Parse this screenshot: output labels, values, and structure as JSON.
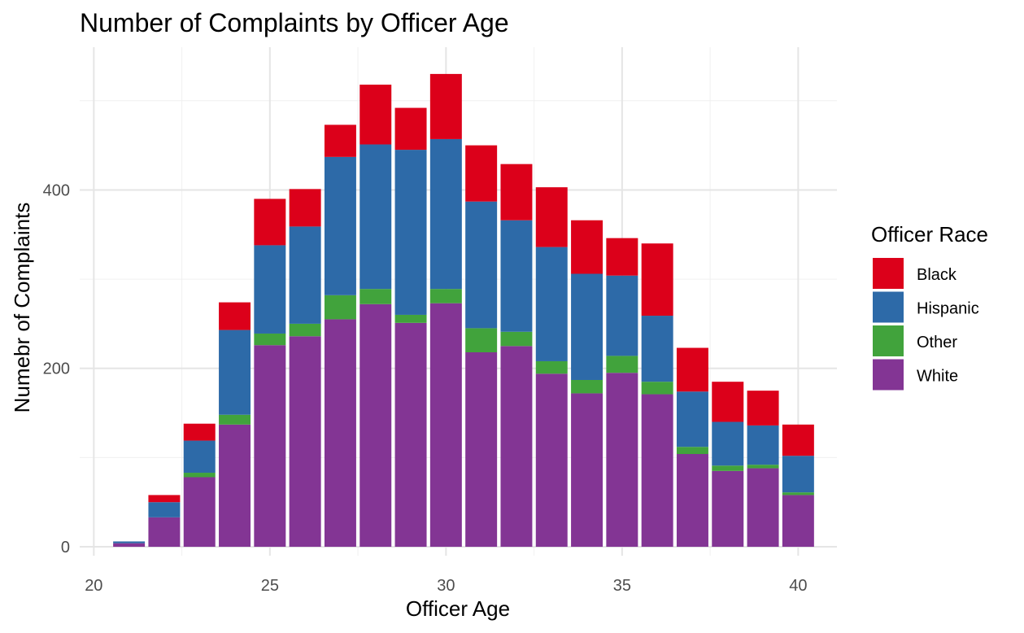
{
  "chart_data": {
    "type": "bar",
    "stacked": true,
    "title": "Number of Complaints by Officer Age",
    "xlabel": "Officer Age",
    "ylabel": "Numebr of Complaints",
    "xlim": [
      19.6,
      41.1
    ],
    "ylim": [
      -10,
      560
    ],
    "xticks": [
      20,
      25,
      30,
      35,
      40
    ],
    "yticks": [
      0,
      200,
      400
    ],
    "grid": true,
    "legend": {
      "title": "Officer Race",
      "position": "right"
    },
    "x": [
      21,
      22,
      23,
      24,
      25,
      26,
      27,
      28,
      29,
      30,
      31,
      32,
      33,
      34,
      35,
      36,
      37,
      38,
      39,
      40
    ],
    "series": [
      {
        "name": "White",
        "color": "#833594",
        "values": [
          4,
          33,
          78,
          137,
          226,
          236,
          255,
          272,
          251,
          273,
          218,
          225,
          194,
          172,
          195,
          171,
          104,
          85,
          88,
          58
        ]
      },
      {
        "name": "Other",
        "color": "#41a33c",
        "values": [
          0,
          0,
          5,
          11,
          13,
          14,
          27,
          17,
          9,
          16,
          27,
          16,
          14,
          15,
          19,
          14,
          8,
          6,
          4,
          3
        ]
      },
      {
        "name": "Hispanic",
        "color": "#2d6aa8",
        "values": [
          2,
          17,
          36,
          95,
          99,
          109,
          155,
          162,
          185,
          168,
          142,
          125,
          128,
          119,
          90,
          74,
          62,
          49,
          44,
          41
        ]
      },
      {
        "name": "Black",
        "color": "#dc001a",
        "values": [
          0,
          8,
          19,
          31,
          52,
          42,
          36,
          67,
          47,
          73,
          63,
          63,
          67,
          60,
          42,
          81,
          49,
          45,
          39,
          35
        ]
      }
    ]
  }
}
